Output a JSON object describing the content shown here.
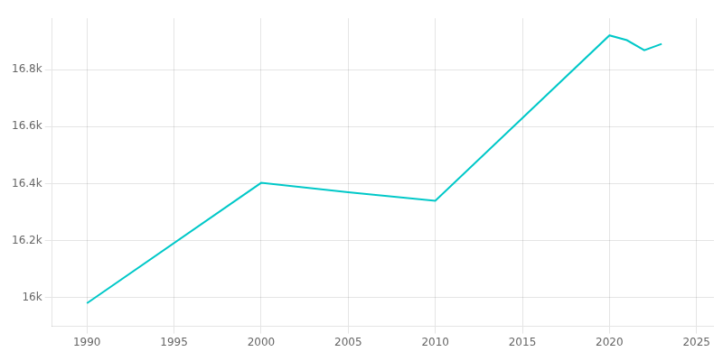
{
  "chart_data": {
    "type": "line",
    "x": [
      1990,
      2000,
      2005,
      2010,
      2020,
      2021,
      2022,
      2023
    ],
    "values": [
      15981,
      16403,
      16370,
      16340,
      16920,
      16903,
      16868,
      16890
    ],
    "color": "#00c8c8",
    "xlim": [
      1988,
      2026
    ],
    "ylim": [
      15900,
      16980
    ],
    "xticks": [
      1990,
      1995,
      2000,
      2005,
      2010,
      2015,
      2020,
      2025
    ],
    "yticks": [
      {
        "value": 16000,
        "label": "16k"
      },
      {
        "value": 16200,
        "label": "16.2k"
      },
      {
        "value": 16400,
        "label": "16.4k"
      },
      {
        "value": 16600,
        "label": "16.6k"
      },
      {
        "value": 16800,
        "label": "16.8k"
      }
    ],
    "grid": true
  }
}
